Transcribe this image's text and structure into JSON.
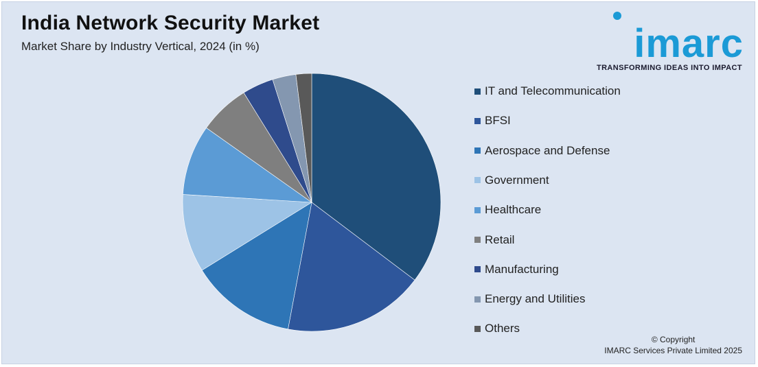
{
  "header": {
    "title": "India Network Security Market",
    "subtitle": "Market Share by Industry Vertical, 2024 (in %)"
  },
  "logo": {
    "wordmark": "imarc",
    "tagline": "TRANSFORMING IDEAS INTO IMPACT",
    "color": "#1b9ad6"
  },
  "footer": {
    "copyright_line1": "© Copyright",
    "copyright_line2": "IMARC Services Private Limited 2025"
  },
  "chart_data": {
    "type": "pie",
    "title": "India Network Security Market",
    "subtitle": "Market Share by Industry Vertical, 2024 (in %)",
    "legend_position": "right",
    "start_angle_deg": 0,
    "direction": "clockwise",
    "slices": [
      {
        "label": "IT and Telecommunication",
        "value": 36,
        "color": "#1f4e79"
      },
      {
        "label": "BFSI",
        "value": 18,
        "color": "#2e569b"
      },
      {
        "label": "Aerospace and Defense",
        "value": 13.5,
        "color": "#2e75b6"
      },
      {
        "label": "Government",
        "value": 10,
        "color": "#9dc3e6"
      },
      {
        "label": "Healthcare",
        "value": 9,
        "color": "#5b9bd5"
      },
      {
        "label": "Retail",
        "value": 6.5,
        "color": "#7f7f7f"
      },
      {
        "label": "Manufacturing",
        "value": 4,
        "color": "#2f4b8c"
      },
      {
        "label": "Energy and Utilities",
        "value": 3,
        "color": "#8497b0"
      },
      {
        "label": "Others",
        "value": 2,
        "color": "#595959"
      }
    ]
  }
}
